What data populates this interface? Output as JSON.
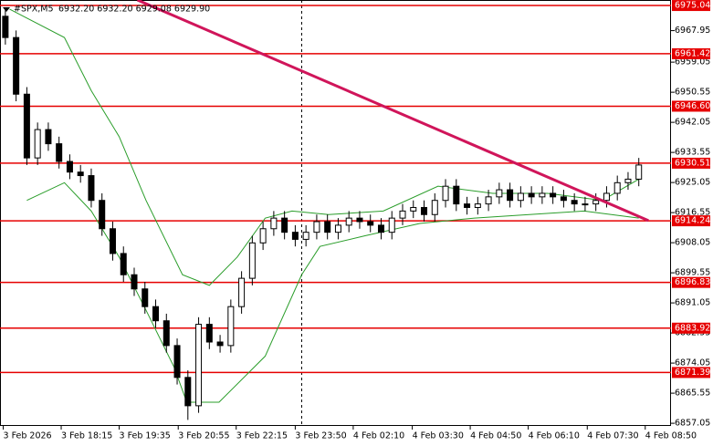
{
  "chart_data": {
    "type": "candlestick",
    "title": "#SPX,M5",
    "ohlc_text": "6932.20 6932.20 6929.08 6929.90",
    "open": [
      6972,
      6966,
      6950,
      6932,
      6940,
      6936,
      6931,
      6928,
      6927,
      6920,
      6912,
      6905,
      6899,
      6895,
      6890,
      6886,
      6879,
      6870,
      6862,
      6885,
      6880,
      6879,
      6890,
      6898,
      6908,
      6912,
      6915,
      6911,
      6909,
      6911,
      6914,
      6911,
      6913,
      6915,
      6914,
      6913,
      6911,
      6915,
      6917,
      6918,
      6916,
      6920,
      6924,
      6919,
      6918,
      6919,
      6921,
      6923,
      6920,
      6922,
      6921,
      6922,
      6921,
      6920,
      6919,
      6919,
      6920,
      6922,
      6925,
      6926
    ],
    "high": [
      6974,
      6968,
      6952,
      6942,
      6942,
      6938,
      6933,
      6930,
      6929,
      6922,
      6914,
      6907,
      6901,
      6897,
      6892,
      6888,
      6881,
      6872,
      6887,
      6887,
      6882,
      6892,
      6900,
      6910,
      6914,
      6917,
      6917,
      6913,
      6913,
      6916,
      6916,
      6915,
      6917,
      6917,
      6916,
      6915,
      6917,
      6919,
      6920,
      6920,
      6922,
      6926,
      6926,
      6921,
      6921,
      6923,
      6925,
      6925,
      6924,
      6924,
      6924,
      6924,
      6923,
      6922,
      6921,
      6922,
      6924,
      6927,
      6928,
      6932
    ],
    "low": [
      6964,
      6948,
      6930,
      6930,
      6934,
      6929,
      6926,
      6925,
      6918,
      6910,
      6903,
      6897,
      6893,
      6888,
      6884,
      6877,
      6868,
      6858,
      6860,
      6878,
      6877,
      6877,
      6888,
      6896,
      6906,
      6910,
      6909,
      6907,
      6907,
      6909,
      6909,
      6909,
      6911,
      6912,
      6911,
      6909,
      6909,
      6913,
      6915,
      6914,
      6914,
      6918,
      6917,
      6916,
      6916,
      6917,
      6919,
      6918,
      6918,
      6919,
      6919,
      6919,
      6918,
      6917,
      6917,
      6917,
      6918,
      6920,
      6923,
      6924
    ],
    "close": [
      6966,
      6950,
      6932,
      6940,
      6936,
      6931,
      6928,
      6927,
      6920,
      6912,
      6905,
      6899,
      6895,
      6890,
      6886,
      6879,
      6870,
      6862,
      6885,
      6880,
      6879,
      6890,
      6898,
      6908,
      6912,
      6915,
      6911,
      6909,
      6911,
      6914,
      6911,
      6913,
      6915,
      6914,
      6913,
      6911,
      6915,
      6917,
      6918,
      6916,
      6920,
      6924,
      6919,
      6918,
      6919,
      6921,
      6923,
      6920,
      6922,
      6921,
      6922,
      6921,
      6920,
      6919,
      6919,
      6920,
      6922,
      6925,
      6926,
      6930
    ],
    "bands": [
      {
        "color": "#2a9d2a",
        "x": [
          0.4,
          5.5,
          8,
          10.6,
          13.1,
          16.5,
          19,
          21.6,
          24.2,
          26.7,
          30.1,
          35.2,
          40.3,
          45.4,
          50.5,
          55.6,
          59.0
        ],
        "values": [
          6974,
          6966,
          6951,
          6938,
          6920,
          6899,
          6896,
          6904,
          6915,
          6917,
          6916,
          6917,
          6924,
          6922,
          6922,
          6920,
          6926
        ]
      },
      {
        "color": "#2a9d2a",
        "x": [
          2,
          5.5,
          8,
          10.6,
          13.1,
          15.7,
          16.9,
          19.9,
          24.2,
          27.6,
          29.3,
          33.5,
          38.6,
          43.7,
          48.8,
          53.9,
          59.0
        ],
        "values": [
          6920,
          6925,
          6917,
          6904,
          6889,
          6873,
          6863,
          6863,
          6876,
          6899,
          6907,
          6910,
          6913.5,
          6915,
          6916,
          6917,
          6915
        ]
      }
    ],
    "trendline": {
      "color": "#d0155a",
      "x": [
        12.3,
        59.9
      ],
      "values": [
        6976.6,
        6914.3
      ]
    },
    "levels": {
      "color": "#e60000",
      "values": [
        6975.04,
        6961.42,
        6946.6,
        6930.51,
        6914.24,
        6896.83,
        6883.92,
        6871.39
      ],
      "value_labels": [
        "6975.04",
        "6961.42",
        "6946.60",
        "6930.51",
        "6914.24",
        "6896.83",
        "6883.92",
        "6871.39"
      ]
    },
    "separator_x": 27.6,
    "xlim": [
      -0.5,
      62
    ],
    "ylim": [
      6856.3,
      6976.6
    ],
    "yticks": [
      6967.95,
      6959.05,
      6950.55,
      6942.05,
      6933.55,
      6925.05,
      6916.55,
      6908.05,
      6899.55,
      6891.05,
      6882.55,
      6874.05,
      6865.55,
      6857.05
    ],
    "xticks": [
      {
        "value": -0.2,
        "label": "3 Feb 2026"
      },
      {
        "value": 5.2,
        "label": "3 Feb 18:15"
      },
      {
        "value": 10.6,
        "label": "3 Feb 19:35"
      },
      {
        "value": 16.1,
        "label": "3 Feb 20:55"
      },
      {
        "value": 21.5,
        "label": "3 Feb 22:15"
      },
      {
        "value": 27.0,
        "label": "3 Feb 23:50"
      },
      {
        "value": 32.4,
        "label": "4 Feb 02:10"
      },
      {
        "value": 37.9,
        "label": "4 Feb 03:30"
      },
      {
        "value": 43.3,
        "label": "4 Feb 04:50"
      },
      {
        "value": 48.7,
        "label": "4 Feb 06:10"
      },
      {
        "value": 54.2,
        "label": "4 Feb 07:30"
      },
      {
        "value": 59.6,
        "label": "4 Feb 08:50"
      }
    ]
  }
}
